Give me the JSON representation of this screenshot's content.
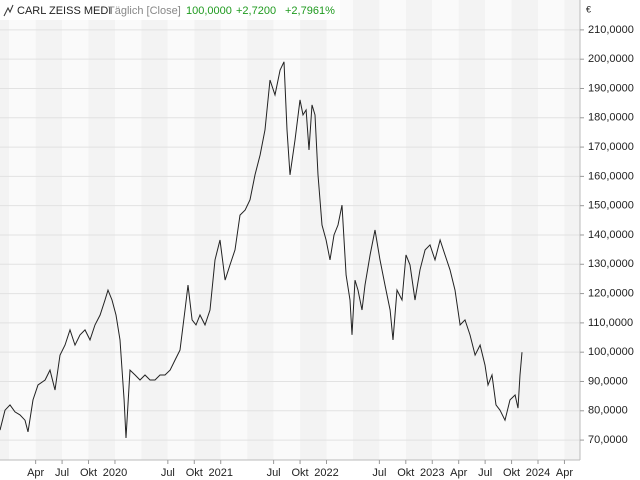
{
  "chart_data": {
    "type": "line",
    "title": "CARL ZEISS MEDI",
    "subtitle": "Täglich [Close]",
    "last_price": "100,0000",
    "change": "+2,7200",
    "change_percent": "+2,7961%",
    "currency": "€",
    "series": [
      {
        "name": "CARL ZEISS MEDI",
        "color": "#222222",
        "x": [
          2018.913,
          2018.96,
          2019.008,
          2019.055,
          2019.102,
          2019.149,
          2019.178,
          2019.225,
          2019.272,
          2019.339,
          2019.386,
          2019.433,
          2019.48,
          2019.528,
          2019.575,
          2019.622,
          2019.669,
          2019.717,
          2019.764,
          2019.811,
          2019.859,
          2019.906,
          2019.934,
          2019.972,
          2020.01,
          2020.048,
          2020.086,
          2020.104,
          2020.142,
          2020.19,
          2020.237,
          2020.284,
          2020.331,
          2020.379,
          2020.426,
          2020.473,
          2020.521,
          2020.568,
          2020.615,
          2020.662,
          2020.691,
          2020.729,
          2020.766,
          2020.804,
          2020.851,
          2020.899,
          2020.946,
          2020.993,
          2021.041,
          2021.088,
          2021.135,
          2021.182,
          2021.23,
          2021.277,
          2021.324,
          2021.372,
          2021.419,
          2021.466,
          2021.513,
          2021.561,
          2021.598,
          2021.627,
          2021.655,
          2021.702,
          2021.75,
          2021.778,
          2021.807,
          2021.835,
          2021.863,
          2021.891,
          2021.92,
          2021.958,
          2021.996,
          2022.033,
          2022.071,
          2022.109,
          2022.147,
          2022.185,
          2022.222,
          2022.241,
          2022.27,
          2022.298,
          2022.336,
          2022.364,
          2022.412,
          2022.459,
          2022.506,
          2022.553,
          2022.601,
          2022.629,
          2022.667,
          2022.714,
          2022.752,
          2022.79,
          2022.837,
          2022.884,
          2022.932,
          2022.979,
          2023.026,
          2023.074,
          2023.121,
          2023.168,
          2023.215,
          2023.263,
          2023.31,
          2023.357,
          2023.405,
          2023.452,
          2023.499,
          2023.527,
          2023.565,
          2023.603,
          2023.641,
          2023.688,
          2023.735,
          2023.783,
          2023.811,
          2023.83,
          2023.849
        ],
        "values": [
          73.4,
          80.2,
          82.0,
          79.6,
          78.6,
          76.8,
          72.8,
          83.7,
          88.8,
          90.5,
          93.9,
          87.1,
          99.0,
          102.4,
          107.6,
          102.4,
          105.9,
          107.6,
          104.2,
          109.3,
          112.7,
          117.8,
          121.2,
          117.8,
          112.7,
          104.2,
          83.7,
          70.7,
          93.9,
          92.2,
          90.5,
          92.2,
          90.5,
          90.5,
          92.2,
          92.2,
          93.9,
          97.3,
          100.7,
          114.4,
          122.9,
          111.0,
          109.3,
          112.7,
          109.3,
          114.4,
          131.5,
          138.3,
          124.6,
          129.8,
          134.9,
          146.8,
          148.5,
          152.0,
          160.5,
          167.3,
          175.9,
          192.9,
          187.8,
          196.3,
          199.1,
          175.9,
          160.5,
          172.4,
          186.1,
          181.0,
          182.7,
          169.0,
          184.4,
          181.0,
          160.5,
          143.4,
          138.3,
          131.5,
          140.0,
          143.4,
          150.2,
          126.3,
          117.8,
          105.9,
          124.6,
          121.2,
          114.4,
          122.9,
          133.2,
          141.7,
          131.5,
          122.9,
          114.4,
          104.2,
          121.2,
          117.8,
          133.2,
          129.8,
          117.8,
          128.1,
          134.9,
          136.6,
          131.5,
          138.3,
          133.2,
          128.1,
          121.2,
          109.3,
          111.0,
          105.9,
          99.0,
          102.4,
          95.6,
          88.8,
          92.2,
          82.0,
          80.2,
          76.8,
          83.7,
          85.4,
          80.9,
          92.2,
          100.0
        ]
      }
    ],
    "xlim": [
      2018.913,
      2024.397
    ],
    "xticks": [
      {
        "value": 2019.25,
        "label": "Apr"
      },
      {
        "value": 2019.5,
        "label": "Jul"
      },
      {
        "value": 2019.75,
        "label": "Okt"
      },
      2020,
      {
        "value": 2020.5,
        "label": "Jul"
      },
      {
        "value": 2020.75,
        "label": "Okt"
      },
      2021,
      {
        "value": 2021.5,
        "label": "Jul"
      },
      {
        "value": 2021.75,
        "label": "Okt"
      },
      2022,
      {
        "value": 2022.5,
        "label": "Jul"
      },
      {
        "value": 2022.75,
        "label": "Okt"
      },
      2023,
      {
        "value": 2023.25,
        "label": "Apr"
      },
      {
        "value": 2023.5,
        "label": "Jul"
      },
      {
        "value": 2023.75,
        "label": "Okt"
      },
      2024,
      {
        "value": 2024.25,
        "label": "Apr"
      }
    ],
    "ylim": [
      63.2,
      220.2
    ],
    "yticks": [
      {
        "value": 70,
        "label": "70,0000"
      },
      {
        "value": 80,
        "label": "80,0000"
      },
      {
        "value": 90,
        "label": "90,0000"
      },
      {
        "value": 100,
        "label": "100,0000"
      },
      {
        "value": 110,
        "label": "110,0000"
      },
      {
        "value": 120,
        "label": "120,0000"
      },
      {
        "value": 130,
        "label": "130,0000"
      },
      {
        "value": 140,
        "label": "140,0000"
      },
      {
        "value": 150,
        "label": "150,0000"
      },
      {
        "value": 160,
        "label": "160,0000"
      },
      {
        "value": 170,
        "label": "170,0000"
      },
      {
        "value": 180,
        "label": "180,0000"
      },
      {
        "value": 190,
        "label": "190,0000"
      },
      {
        "value": 200,
        "label": "200,0000"
      },
      {
        "value": 210,
        "label": "210,0000"
      }
    ],
    "grid": true,
    "up_color": "#1f9a1f"
  }
}
